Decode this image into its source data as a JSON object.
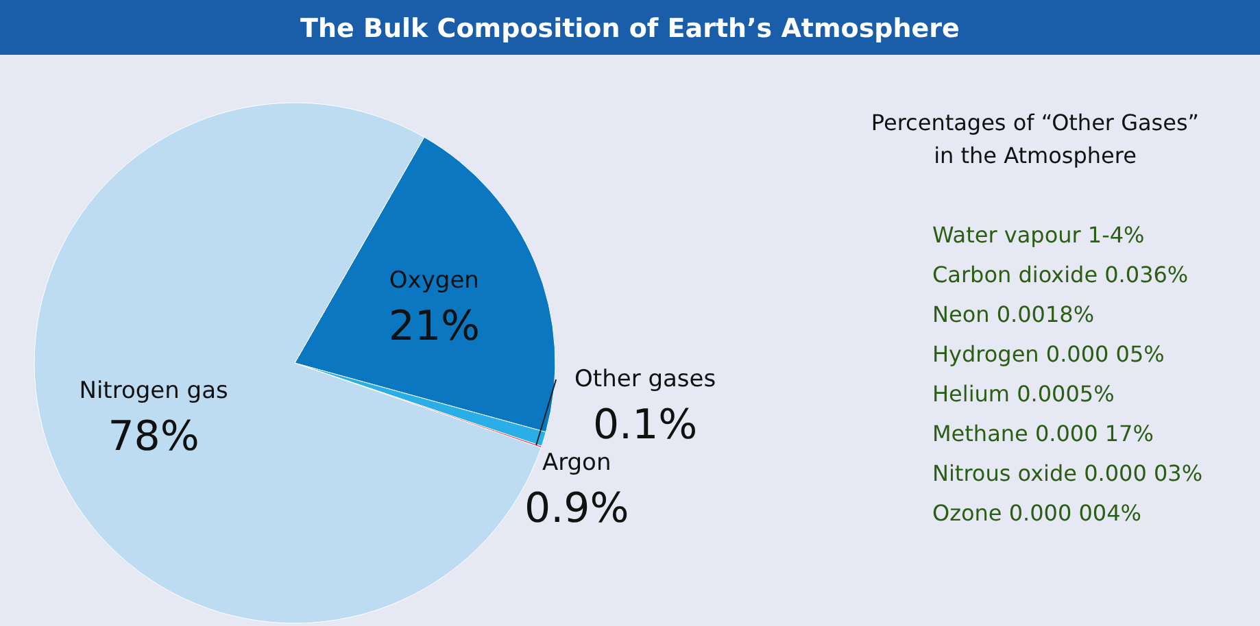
{
  "chart_data": {
    "type": "pie",
    "title": "The Bulk Composition of Earth’s Atmosphere",
    "categories": [
      "Oxygen",
      "Argon",
      "Other gases",
      "Nitrogen gas"
    ],
    "values": [
      21,
      0.9,
      0.1,
      78
    ],
    "value_labels": [
      "21%",
      "0.9%",
      "0.1%",
      "78%"
    ],
    "colors": [
      "#0a77c0",
      "#29aee8",
      "#e8334a",
      "#bddcf2"
    ],
    "legend": false,
    "annotations": [
      "Percentages of “Other Gases” in the Atmosphere",
      "Water vapour 1-4%",
      "Carbon dioxide 0.036%",
      "Neon 0.0018%",
      "Hydrogen 0.000 05%",
      "Helium 0.0005%",
      "Methane 0.000 17%",
      "Nitrous oxide 0.000 03%",
      "Ozone 0.000 004%"
    ]
  }
}
